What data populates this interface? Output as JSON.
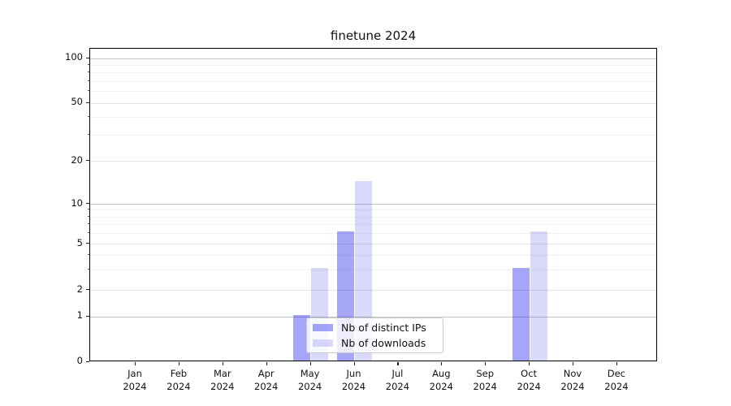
{
  "title": "finetune 2024",
  "chart_data": {
    "type": "bar",
    "title": "finetune 2024",
    "categories": [
      "Jan",
      "Feb",
      "Mar",
      "Apr",
      "May",
      "Jun",
      "Jul",
      "Aug",
      "Sep",
      "Oct",
      "Nov",
      "Dec"
    ],
    "x_year_line": "2024",
    "series": [
      {
        "name": "Nb of distinct IPs",
        "color_hex": "#a6a6f8",
        "fill": "rgba(0,0,235,0.35)",
        "values": [
          0,
          0,
          0,
          0,
          1,
          6,
          0,
          0,
          0,
          3,
          0,
          0
        ]
      },
      {
        "name": "Nb of downloads",
        "color_hex": "#d9d9fc",
        "fill": "rgba(0,0,235,0.15)",
        "values": [
          0,
          0,
          0,
          0,
          3,
          14,
          0,
          0,
          0,
          6,
          0,
          0
        ]
      }
    ],
    "y_axis": {
      "scale": "symlog",
      "ticks": [
        0,
        1,
        2,
        5,
        10,
        20,
        50,
        100
      ],
      "minor_gridlines": [
        3,
        4,
        6,
        7,
        8,
        9,
        30,
        40,
        60,
        70,
        80,
        90
      ],
      "ylim": [
        0,
        115
      ]
    },
    "legend": {
      "position": "lower center",
      "entries": [
        "Nb of distinct IPs",
        "Nb of downloads"
      ]
    },
    "grid": true
  }
}
